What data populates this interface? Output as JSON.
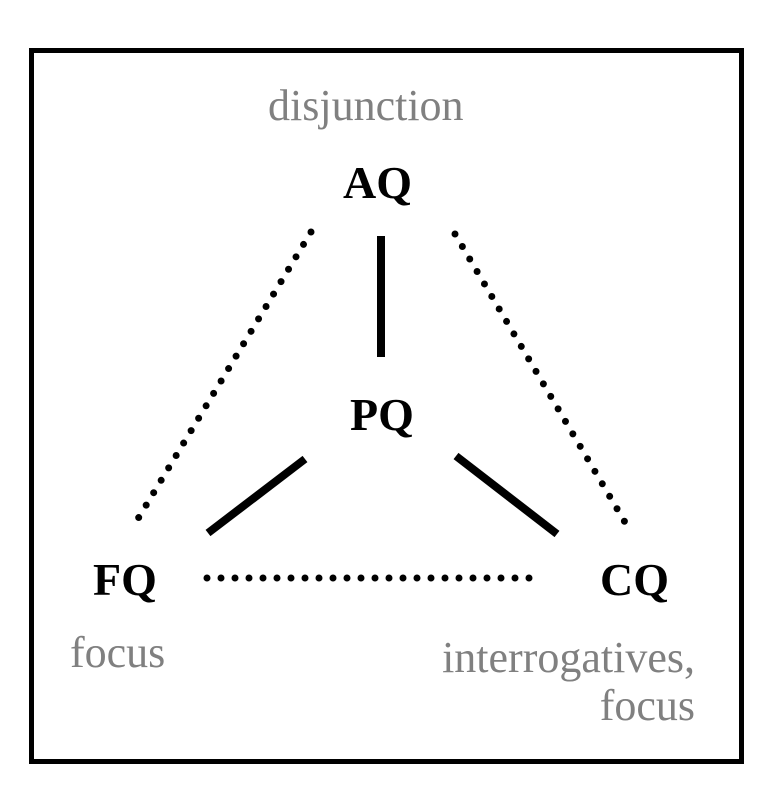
{
  "nodes": {
    "aq": "AQ",
    "pq": "PQ",
    "fq": "FQ",
    "cq": "CQ"
  },
  "notes": {
    "top": "disjunction",
    "left": "focus",
    "right_line1": "interrogatives,",
    "right_line2": "focus"
  },
  "edges": [
    {
      "from": "AQ",
      "to": "PQ",
      "style": "solid"
    },
    {
      "from": "PQ",
      "to": "FQ",
      "style": "solid"
    },
    {
      "from": "PQ",
      "to": "CQ",
      "style": "solid"
    },
    {
      "from": "AQ",
      "to": "FQ",
      "style": "dotted"
    },
    {
      "from": "AQ",
      "to": "CQ",
      "style": "dotted"
    },
    {
      "from": "FQ",
      "to": "CQ",
      "style": "dotted"
    }
  ],
  "colors": {
    "node": "#000000",
    "note": "#808080",
    "line": "#000000",
    "background": "#ffffff"
  }
}
